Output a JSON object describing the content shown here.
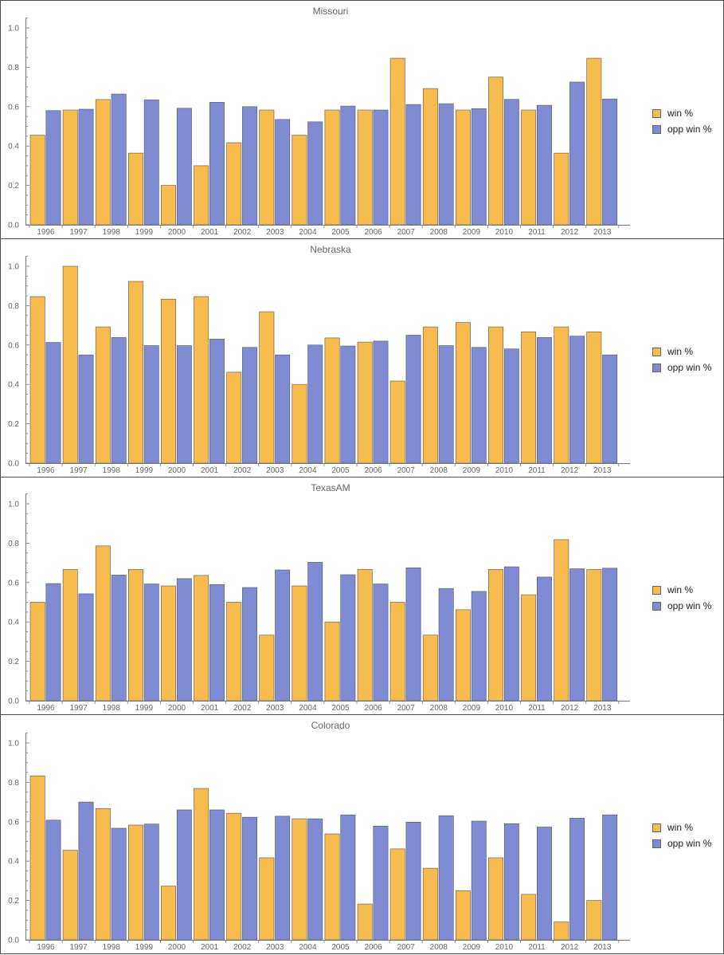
{
  "colors": {
    "win": "#f8bb4e",
    "opp": "#7f8cd3",
    "axis": "#777777",
    "text": "#666666"
  },
  "legend": {
    "win_label": "win %",
    "opp_label": "opp win %"
  },
  "chart_data": [
    {
      "type": "bar",
      "title": "Missouri",
      "categories": [
        "1996",
        "1997",
        "1998",
        "1999",
        "2000",
        "2001",
        "2002",
        "2003",
        "2004",
        "2005",
        "2006",
        "2007",
        "2008",
        "2009",
        "2010",
        "2011",
        "2012",
        "2013"
      ],
      "series": [
        {
          "name": "win %",
          "values": [
            0.455,
            0.583,
            0.636,
            0.364,
            0.2,
            0.3,
            0.417,
            0.583,
            0.455,
            0.583,
            0.583,
            0.846,
            0.692,
            0.583,
            0.75,
            0.583,
            0.364,
            0.846
          ]
        },
        {
          "name": "opp win %",
          "values": [
            0.58,
            0.587,
            0.664,
            0.635,
            0.592,
            0.622,
            0.6,
            0.535,
            0.523,
            0.603,
            0.583,
            0.611,
            0.615,
            0.59,
            0.637,
            0.607,
            0.725,
            0.639
          ]
        }
      ],
      "yticks": [
        "0.0",
        "0.2",
        "0.4",
        "0.6",
        "0.8",
        "1.0"
      ],
      "ylim": [
        0,
        1.05
      ]
    },
    {
      "type": "bar",
      "title": "Nebraska",
      "categories": [
        "1996",
        "1997",
        "1998",
        "1999",
        "2000",
        "2001",
        "2002",
        "2003",
        "2004",
        "2005",
        "2006",
        "2007",
        "2008",
        "2009",
        "2010",
        "2011",
        "2012",
        "2013"
      ],
      "series": [
        {
          "name": "win %",
          "values": [
            0.846,
            1.0,
            0.692,
            0.923,
            0.833,
            0.846,
            0.462,
            0.769,
            0.4,
            0.636,
            0.615,
            0.417,
            0.692,
            0.714,
            0.692,
            0.667,
            0.692,
            0.667
          ]
        },
        {
          "name": "opp win %",
          "values": [
            0.613,
            0.55,
            0.638,
            0.597,
            0.597,
            0.63,
            0.588,
            0.55,
            0.6,
            0.595,
            0.62,
            0.65,
            0.597,
            0.588,
            0.58,
            0.638,
            0.645,
            0.55
          ]
        }
      ],
      "yticks": [
        "0.0",
        "0.2",
        "0.4",
        "0.6",
        "0.8",
        "1.0"
      ],
      "ylim": [
        0,
        1.05
      ]
    },
    {
      "type": "bar",
      "title": "TexasAM",
      "categories": [
        "1996",
        "1997",
        "1998",
        "1999",
        "2000",
        "2001",
        "2002",
        "2003",
        "2004",
        "2005",
        "2006",
        "2007",
        "2008",
        "2009",
        "2010",
        "2011",
        "2012",
        "2013"
      ],
      "series": [
        {
          "name": "win %",
          "values": [
            0.5,
            0.667,
            0.786,
            0.667,
            0.583,
            0.636,
            0.5,
            0.333,
            0.583,
            0.4,
            0.667,
            0.5,
            0.333,
            0.462,
            0.667,
            0.538,
            0.818,
            0.667
          ]
        },
        {
          "name": "opp win %",
          "values": [
            0.595,
            0.543,
            0.638,
            0.593,
            0.62,
            0.59,
            0.575,
            0.664,
            0.703,
            0.64,
            0.593,
            0.675,
            0.57,
            0.555,
            0.68,
            0.628,
            0.67,
            0.673
          ]
        }
      ],
      "yticks": [
        "0.0",
        "0.2",
        "0.4",
        "0.6",
        "0.8",
        "1.0"
      ],
      "ylim": [
        0,
        1.05
      ]
    },
    {
      "type": "bar",
      "title": "Colorado",
      "categories": [
        "1996",
        "1997",
        "1998",
        "1999",
        "2000",
        "2001",
        "2002",
        "2003",
        "2004",
        "2005",
        "2006",
        "2007",
        "2008",
        "2009",
        "2010",
        "2011",
        "2012",
        "2013"
      ],
      "series": [
        {
          "name": "win %",
          "values": [
            0.833,
            0.455,
            0.667,
            0.583,
            0.273,
            0.769,
            0.643,
            0.417,
            0.615,
            0.538,
            0.182,
            0.462,
            0.364,
            0.25,
            0.417,
            0.231,
            0.091,
            0.2
          ]
        },
        {
          "name": "opp win %",
          "values": [
            0.608,
            0.7,
            0.567,
            0.588,
            0.66,
            0.66,
            0.623,
            0.628,
            0.615,
            0.635,
            0.578,
            0.598,
            0.63,
            0.603,
            0.59,
            0.573,
            0.618,
            0.635
          ]
        }
      ],
      "yticks": [
        "0.0",
        "0.2",
        "0.4",
        "0.6",
        "0.8",
        "1.0"
      ],
      "ylim": [
        0,
        1.05
      ]
    }
  ]
}
